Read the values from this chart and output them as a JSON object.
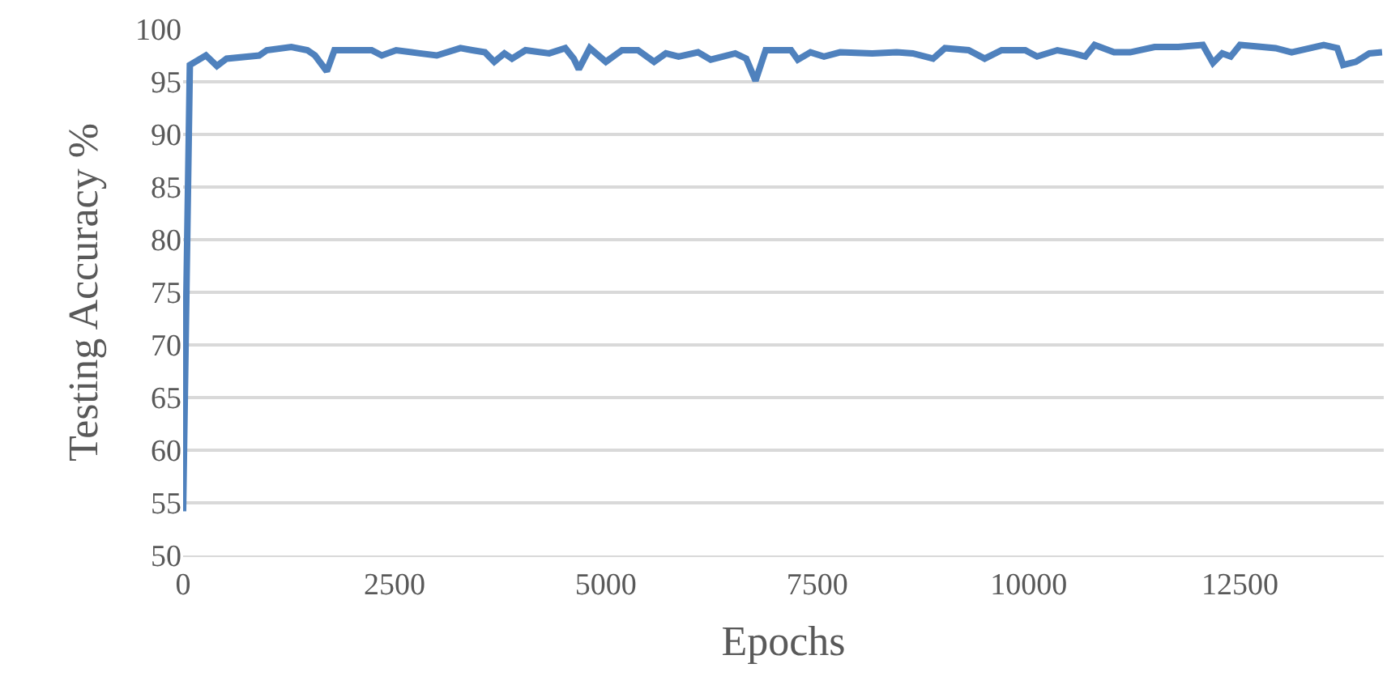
{
  "chart_data": {
    "type": "line",
    "xlabel": "Epochs",
    "ylabel": "Testing Accuracy %",
    "xlim": [
      0,
      14200
    ],
    "xticks": [
      0,
      2500,
      5000,
      7500,
      10000,
      12500
    ],
    "ylim": [
      50,
      100
    ],
    "yticks": [
      50,
      55,
      60,
      65,
      70,
      75,
      80,
      85,
      90,
      95,
      100
    ],
    "grid": "y",
    "marker": "none",
    "line_style": "solid",
    "series": [
      {
        "color": "#4f81bd",
        "x": [
          0,
          80,
          270,
          400,
          515,
          900,
          990,
          1280,
          1470,
          1560,
          1700,
          1790,
          2230,
          2350,
          2520,
          2800,
          3000,
          3280,
          3420,
          3570,
          3680,
          3800,
          3890,
          4050,
          4330,
          4520,
          4620,
          4680,
          4810,
          5000,
          5190,
          5380,
          5570,
          5710,
          5860,
          6090,
          6240,
          6530,
          6660,
          6770,
          6890,
          7190,
          7270,
          7420,
          7580,
          7770,
          8150,
          8440,
          8630,
          8870,
          9010,
          9290,
          9480,
          9680,
          9960,
          10100,
          10340,
          10530,
          10670,
          10780,
          11010,
          11200,
          11490,
          11770,
          12060,
          12180,
          12290,
          12390,
          12500,
          12920,
          13110,
          13490,
          13650,
          13720,
          13870,
          14030,
          14180
        ],
        "values": [
          54.2,
          96.6,
          97.5,
          96.5,
          97.2,
          97.5,
          98,
          98.3,
          98,
          97.5,
          96,
          98,
          98,
          97.5,
          98,
          97.7,
          97.5,
          98.2,
          98,
          97.8,
          96.9,
          97.7,
          97.2,
          98,
          97.7,
          98.2,
          97.2,
          96.2,
          98.2,
          96.9,
          98,
          98,
          96.9,
          97.7,
          97.4,
          97.8,
          97.1,
          97.7,
          97.2,
          95.1,
          98,
          98,
          97.1,
          97.8,
          97.4,
          97.8,
          97.7,
          97.8,
          97.7,
          97.2,
          98.2,
          98,
          97.2,
          98,
          98,
          97.4,
          98,
          97.7,
          97.4,
          98.5,
          97.8,
          97.8,
          98.3,
          98.3,
          98.5,
          96.8,
          97.7,
          97.4,
          98.5,
          98.2,
          97.8,
          98.5,
          98.2,
          96.6,
          96.9,
          97.7,
          97.8
        ]
      }
    ]
  }
}
